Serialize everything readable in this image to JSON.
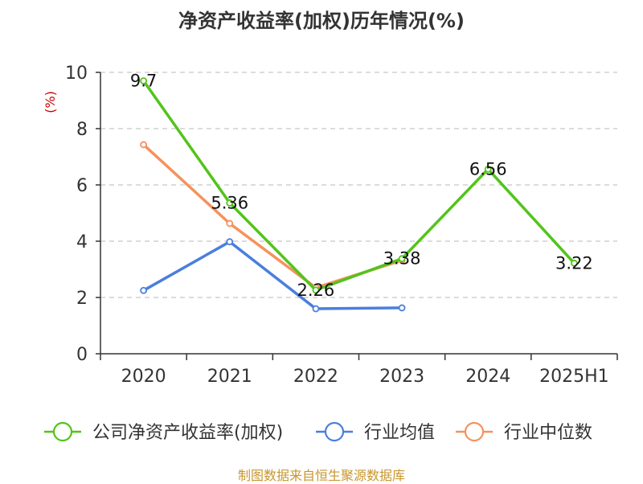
{
  "chart_data": {
    "type": "line",
    "title": "净资产收益率(加权)历年情况(%)",
    "ylabel": "(%)",
    "categories": [
      "2020",
      "2021",
      "2022",
      "2023",
      "2024",
      "2025H1"
    ],
    "ylim": [
      0,
      10
    ],
    "yticks": [
      0,
      2,
      4,
      6,
      8,
      10
    ],
    "grid": true,
    "legend_position": "bottom",
    "series": [
      {
        "name": "公司净资产收益率(加权)",
        "color": "#52c41a",
        "values": [
          9.7,
          5.36,
          2.26,
          3.38,
          6.56,
          3.22
        ],
        "labels": [
          "9.7",
          "5.36",
          "2.26",
          "3.38",
          "6.56",
          "3.22"
        ]
      },
      {
        "name": "行业均值",
        "color": "#4a7fdc",
        "values": [
          2.25,
          3.98,
          1.6,
          1.63,
          null,
          null
        ]
      },
      {
        "name": "行业中位数",
        "color": "#f5925c",
        "values": [
          7.43,
          4.63,
          2.35,
          3.32,
          null,
          null
        ]
      }
    ]
  },
  "source": "制图数据来自恒生聚源数据库"
}
